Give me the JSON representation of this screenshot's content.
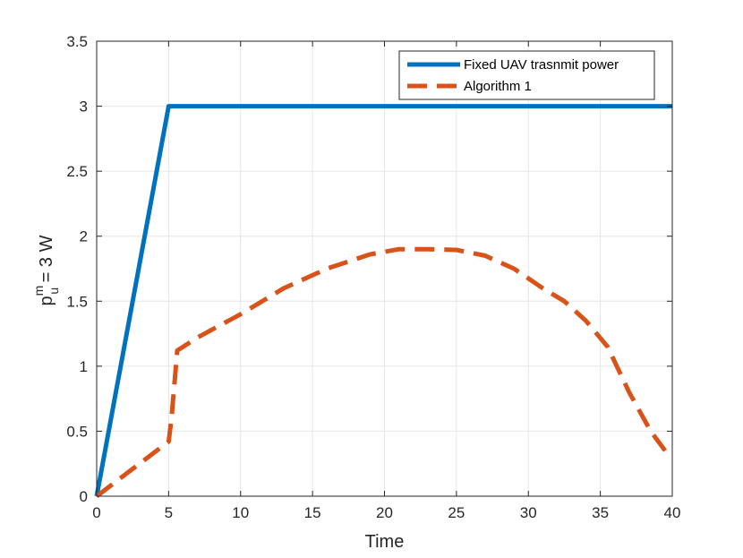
{
  "chart_data": {
    "type": "line",
    "xlabel": "Time",
    "ylabel": {
      "base": "p",
      "superscript": "m",
      "subscript": "u",
      "suffix": " = 3 W"
    },
    "xlim": [
      0,
      40
    ],
    "ylim": [
      0,
      3.5
    ],
    "xticks": [
      "0",
      "5",
      "10",
      "15",
      "20",
      "25",
      "30",
      "35",
      "40"
    ],
    "yticks": [
      "0",
      "0.5",
      "1",
      "1.5",
      "2",
      "2.5",
      "3",
      "3.5"
    ],
    "grid": true,
    "legend_position": "top-right",
    "series": [
      {
        "name": "Fixed UAV trasnmit power",
        "color": "#0072BD",
        "style": "solid",
        "x": [
          0,
          5,
          40
        ],
        "y": [
          0,
          3,
          3
        ]
      },
      {
        "name": "Algorithm 1",
        "color": "#D95319",
        "style": "dashed",
        "x": [
          0,
          5,
          5.2,
          5.6,
          7,
          10,
          13,
          16,
          19,
          21,
          23,
          25,
          27,
          29,
          31,
          32.5,
          34,
          35.5,
          37,
          38.5,
          39.5
        ],
        "y": [
          0,
          0.42,
          0.6,
          1.12,
          1.22,
          1.4,
          1.6,
          1.75,
          1.86,
          1.9,
          1.9,
          1.895,
          1.85,
          1.75,
          1.6,
          1.5,
          1.35,
          1.15,
          0.8,
          0.5,
          0.35
        ]
      }
    ]
  }
}
